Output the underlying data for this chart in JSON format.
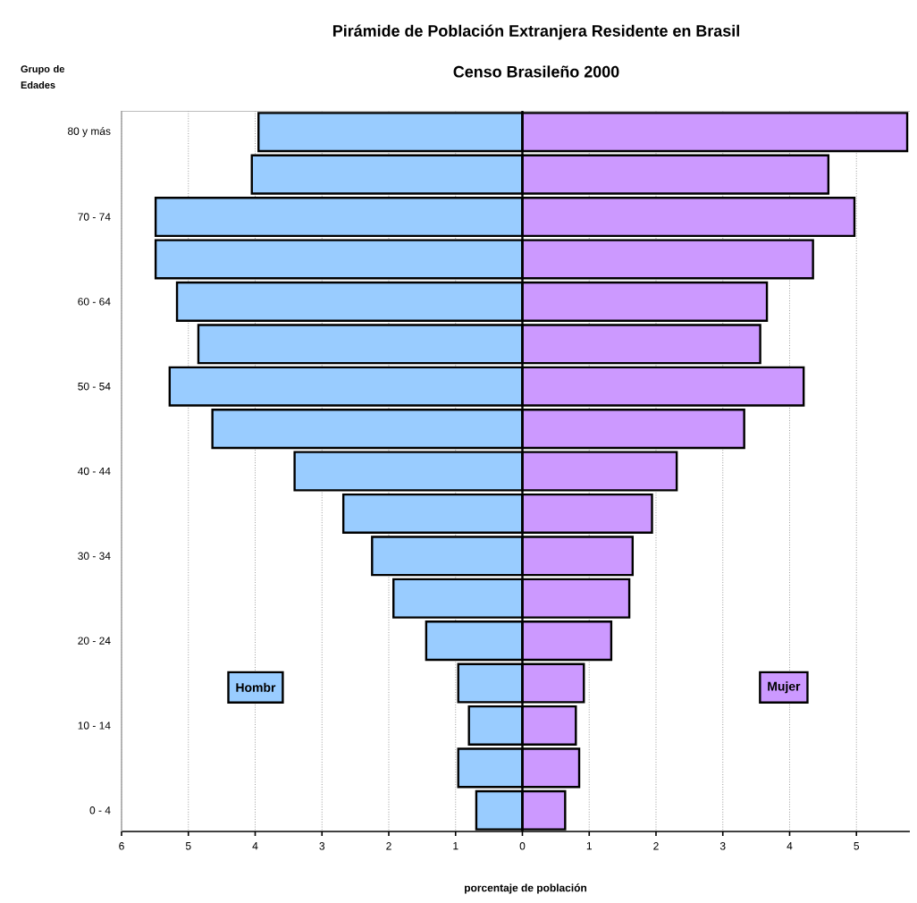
{
  "chart_data": {
    "type": "bar",
    "orientation": "horizontal",
    "title": "Pirámide de Población Extranjera Residente en Brasil",
    "subtitle": "Censo Brasileño 2000",
    "ylabel": "Grupo de Edades",
    "xlabel": "porcentaje de población",
    "categories": [
      "80 y más",
      null,
      "70 - 74",
      null,
      "60 - 64",
      null,
      "50 - 54",
      null,
      "40 - 44",
      null,
      "30 - 34",
      null,
      "20 - 24",
      null,
      "10 - 14",
      null,
      "0 - 4"
    ],
    "series": [
      {
        "name": "Hombr",
        "color": "#99ccff",
        "values": [
          -3.95,
          -4.05,
          -5.49,
          -5.49,
          -5.17,
          -4.85,
          -5.28,
          -4.64,
          -3.41,
          -2.68,
          -2.25,
          -1.93,
          -1.44,
          -0.96,
          -0.8,
          -0.96,
          -0.69
        ]
      },
      {
        "name": "Mujer",
        "color": "#cc99ff",
        "values": [
          5.76,
          4.58,
          4.97,
          4.35,
          3.66,
          3.56,
          4.21,
          3.32,
          2.31,
          1.94,
          1.65,
          1.6,
          1.33,
          0.92,
          0.8,
          0.85,
          0.64
        ]
      }
    ],
    "xlim": [
      -6,
      5.8
    ],
    "xticks": [
      {
        "value": -6,
        "label": "6"
      },
      {
        "value": -5,
        "label": "5"
      },
      {
        "value": -4,
        "label": "4"
      },
      {
        "value": -3,
        "label": "3"
      },
      {
        "value": -2,
        "label": "2"
      },
      {
        "value": -1,
        "label": "1"
      },
      0,
      1,
      2,
      3,
      4,
      5
    ],
    "grid": "x",
    "legend": "bottom",
    "stacked": true
  }
}
